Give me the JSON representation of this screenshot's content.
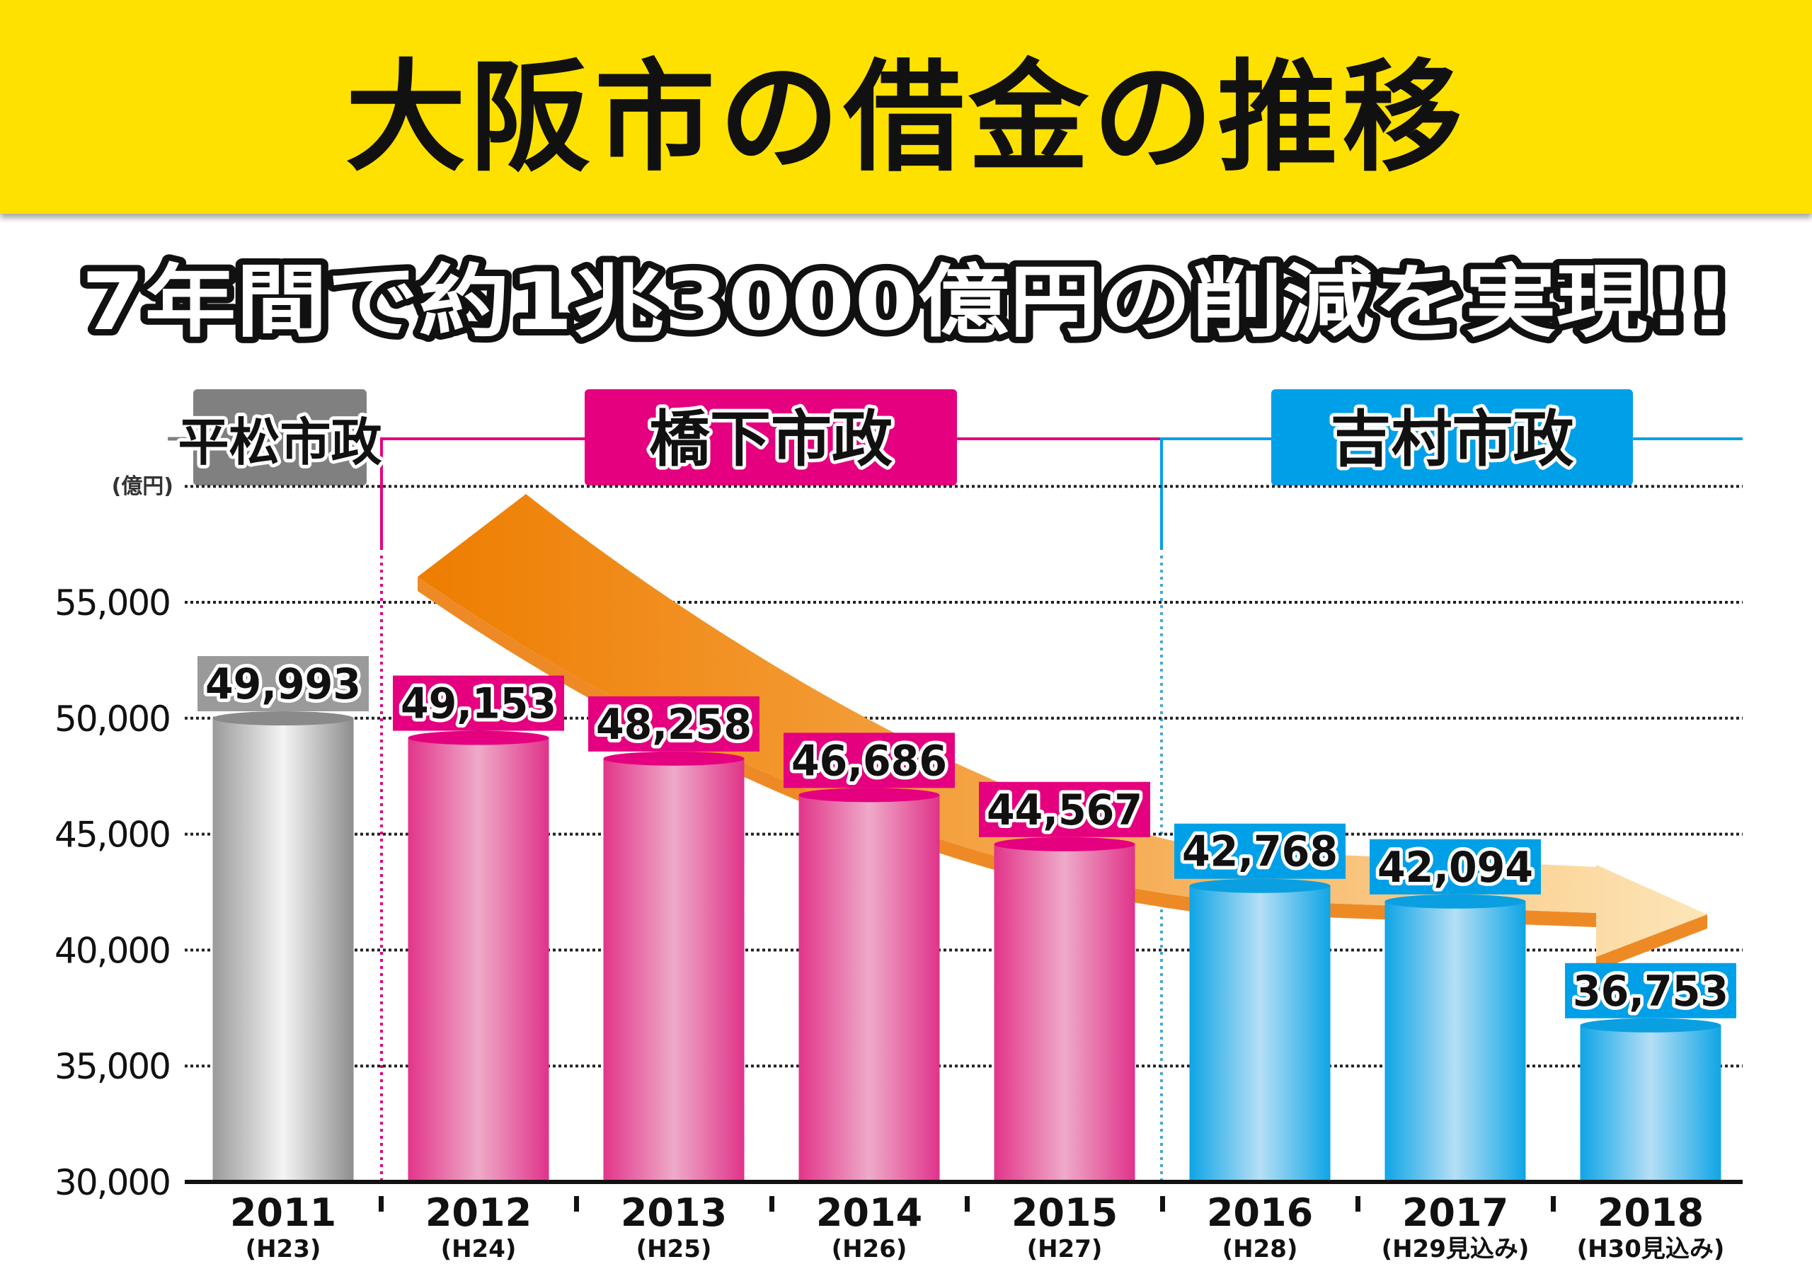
{
  "header": {
    "title": "大阪市の借金の推移"
  },
  "subtitle": "7年間で約1兆3000億円の削減を実現!!",
  "eras": [
    {
      "label": "平松市政",
      "color": "#808080"
    },
    {
      "label": "橋下市政",
      "color": "#e4007f"
    },
    {
      "label": "吉村市政",
      "color": "#00a0e9"
    }
  ],
  "chart_data": {
    "type": "bar",
    "title": "大阪市の借金の推移",
    "ylabel": "(億円)",
    "ylim": [
      30000,
      60000
    ],
    "yticks": [
      30000,
      35000,
      40000,
      45000,
      50000,
      55000
    ],
    "ytick_labels": [
      "30,000",
      "35,000",
      "40,000",
      "45,000",
      "50,000",
      "55,000"
    ],
    "grid": true,
    "categories": [
      "2011",
      "2012",
      "2013",
      "2014",
      "2015",
      "2016",
      "2017",
      "2018"
    ],
    "sub_labels": [
      "(H23)",
      "(H24)",
      "(H25)",
      "(H26)",
      "(H27)",
      "(H28)",
      "(H29見込み)",
      "(H30見込み)"
    ],
    "values": [
      49993,
      49153,
      48258,
      46686,
      44567,
      42768,
      42094,
      36753
    ],
    "value_labels": [
      "49,993",
      "49,153",
      "48,258",
      "46,686",
      "44,567",
      "42,768",
      "42,094",
      "36,753"
    ],
    "era_index": [
      0,
      1,
      1,
      1,
      1,
      2,
      2,
      2
    ],
    "annotation": "downward trend arrow"
  }
}
